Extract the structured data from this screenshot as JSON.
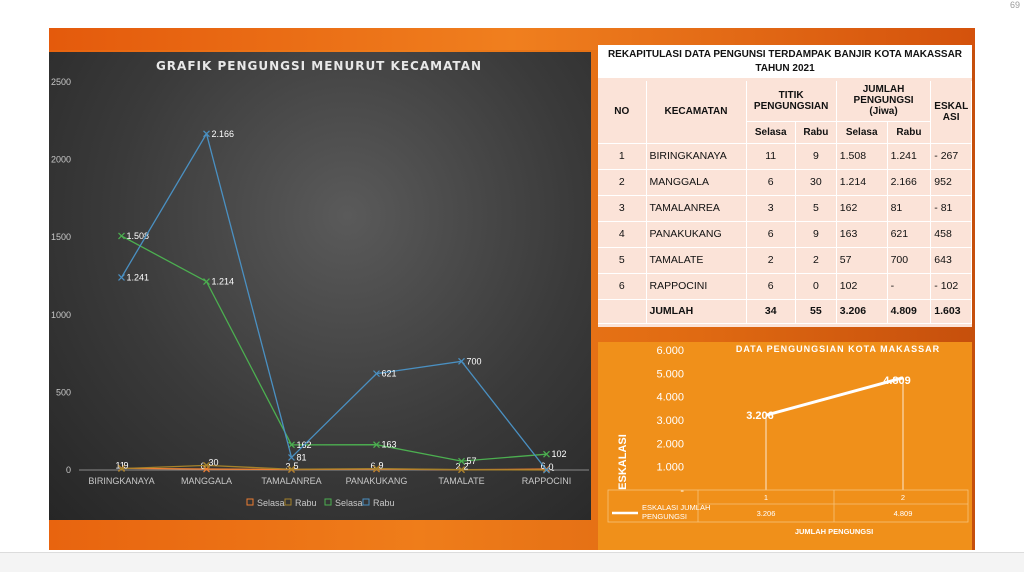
{
  "topbar": {
    "badge": "69"
  },
  "line_chart": {
    "title": "GRAFIK PENGUNGSI MENURUT KECAMATAN"
  },
  "table": {
    "title_line1": "REKAPITULASI DATA PENGUNSI TERDAMPAK BANJIR KOTA MAKASSAR",
    "title_line2": "TAHUN 2021",
    "headers": {
      "no": "NO",
      "kecamatan": "KECAMATAN",
      "titik": "TITIK PENGUNGSIAN",
      "jumlah": "JUMLAH PENGUNGSI (Jiwa)",
      "eskalasi": "ESKAL ASI",
      "selasa": "Selasa",
      "rabu": "Rabu"
    },
    "rows": [
      {
        "no": "1",
        "kec": "BIRINGKANAYA",
        "t_sel": "11",
        "t_rab": "9",
        "j_sel": "1.508",
        "j_rab": "1.241",
        "esk": "- 267"
      },
      {
        "no": "2",
        "kec": "MANGGALA",
        "t_sel": "6",
        "t_rab": "30",
        "j_sel": "1.214",
        "j_rab": "2.166",
        "esk": "952"
      },
      {
        "no": "3",
        "kec": "TAMALANREA",
        "t_sel": "3",
        "t_rab": "5",
        "j_sel": "162",
        "j_rab": "81",
        "esk": "- 81"
      },
      {
        "no": "4",
        "kec": "PANAKUKANG",
        "t_sel": "6",
        "t_rab": "9",
        "j_sel": "163",
        "j_rab": "621",
        "esk": "458"
      },
      {
        "no": "5",
        "kec": "TAMALATE",
        "t_sel": "2",
        "t_rab": "2",
        "j_sel": "57",
        "j_rab": "700",
        "esk": "643"
      },
      {
        "no": "6",
        "kec": "RAPPOCINI",
        "t_sel": "6",
        "t_rab": "0",
        "j_sel": "102",
        "j_rab": "-",
        "esk": "- 102"
      }
    ],
    "total": {
      "label": "JUMLAH",
      "t_sel": "34",
      "t_rab": "55",
      "j_sel": "3.206",
      "j_rab": "4.809",
      "esk": "1.603"
    }
  },
  "chart_data": [
    {
      "type": "line",
      "title": "GRAFIK PENGUNGSI MENURUT KECAMATAN",
      "categories": [
        "BIRINGKANAYA",
        "MANGGALA",
        "TAMALANREA",
        "PANAKUKANG",
        "TAMALATE",
        "RAPPOCINI"
      ],
      "ylim": [
        0,
        2500
      ],
      "yticks": [
        "0",
        "500",
        "1000",
        "1500",
        "2000",
        "2500"
      ],
      "grid": false,
      "legend": "bottom",
      "series": [
        {
          "name": "Selasa",
          "color": "#ed7d31",
          "values": [
            11,
            6,
            3,
            6,
            2,
            6
          ],
          "labels": [
            "11",
            "6",
            "3",
            "6",
            "2",
            "6"
          ]
        },
        {
          "name": "Rabu",
          "color": "#a5822a",
          "values": [
            9,
            30,
            5,
            9,
            2,
            0
          ],
          "labels": [
            "9",
            "30",
            "5",
            "9",
            "2",
            "0"
          ]
        },
        {
          "name": "Selasa",
          "color": "#4caf50",
          "values": [
            1508,
            1214,
            162,
            163,
            57,
            102
          ],
          "labels": [
            "1.508",
            "1.214",
            "162",
            "163",
            "57",
            "102"
          ]
        },
        {
          "name": "Rabu",
          "color": "#4a90c2",
          "values": [
            1241,
            2166,
            81,
            621,
            700,
            0
          ],
          "labels": [
            "1.241",
            "2.166",
            "81",
            "621",
            "700",
            "-"
          ]
        }
      ]
    },
    {
      "type": "line",
      "title": "DATA PENGUNGSIAN KOTA MAKASSAR",
      "ylabel": "ESKALASI",
      "xlabel": "JUMLAH PENGUNGSI",
      "categories": [
        "1",
        "2"
      ],
      "ylim": [
        0,
        6000
      ],
      "yticks": [
        "-",
        "1.000",
        "2.000",
        "3.000",
        "4.000",
        "5.000",
        "6.000"
      ],
      "series": [
        {
          "name": "ESKALASI JUMLAH PENGUNGSI",
          "values": [
            3206,
            4809
          ],
          "labels": [
            "3.206",
            "4.809"
          ]
        }
      ],
      "table_values": [
        "3.206",
        "4.809"
      ]
    }
  ]
}
